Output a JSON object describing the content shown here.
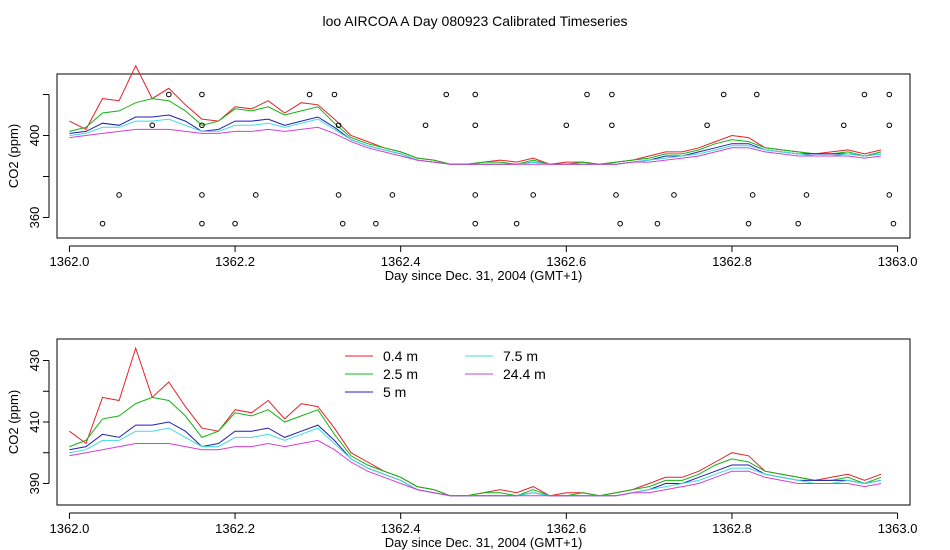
{
  "figure": {
    "title": "loo AIRCOA A  Day 080923  Calibrated Timeseries",
    "colors": {
      "0.4 m": "#e8202a",
      "2.5 m": "#13b413",
      "5 m": "#1f1fb8",
      "7.5 m": "#3fdcdc",
      "24.4 m": "#d43fd4"
    }
  },
  "chart_data": [
    {
      "type": "line",
      "title": "",
      "xlabel": "Day since Dec. 31, 2004 (GMT+1)",
      "ylabel": "CO2 (ppm)",
      "xlim": [
        1361.985,
        1363.015
      ],
      "ylim": [
        350,
        430
      ],
      "xticks": [
        1362.0,
        1362.2,
        1362.4,
        1362.6,
        1362.8,
        1363.0
      ],
      "xtick_labels": [
        "1362.0",
        "1362.2",
        "1362.4",
        "1362.6",
        "1362.8",
        "1363.0"
      ],
      "yticks": [
        360,
        380,
        400,
        420
      ],
      "ytick_labels": [
        "360",
        "",
        "400",
        ""
      ],
      "legend": null,
      "x": [
        1362.0,
        1362.02,
        1362.04,
        1362.06,
        1362.08,
        1362.1,
        1362.12,
        1362.14,
        1362.16,
        1362.18,
        1362.2,
        1362.22,
        1362.24,
        1362.26,
        1362.28,
        1362.3,
        1362.32,
        1362.34,
        1362.36,
        1362.38,
        1362.4,
        1362.42,
        1362.44,
        1362.46,
        1362.48,
        1362.5,
        1362.52,
        1362.54,
        1362.56,
        1362.58,
        1362.6,
        1362.62,
        1362.64,
        1362.66,
        1362.68,
        1362.7,
        1362.72,
        1362.74,
        1362.76,
        1362.78,
        1362.8,
        1362.82,
        1362.84,
        1362.86,
        1362.88,
        1362.9,
        1362.92,
        1362.94,
        1362.96,
        1362.98
      ],
      "series": [
        {
          "name": "0.4 m",
          "values": [
            407,
            403,
            418,
            417,
            434,
            418,
            423,
            415,
            408,
            407,
            414,
            413,
            417,
            411,
            416,
            415,
            408,
            400,
            397,
            394,
            392,
            389,
            388,
            386,
            386,
            387,
            388,
            387,
            389,
            386,
            387,
            387,
            386,
            387,
            388,
            390,
            392,
            392,
            394,
            397,
            400,
            399,
            394,
            393,
            392,
            391,
            392,
            393,
            391,
            393
          ]
        },
        {
          "name": "2.5 m",
          "values": [
            402,
            404,
            411,
            412,
            416,
            418,
            417,
            412,
            405,
            407,
            413,
            412,
            414,
            410,
            412,
            414,
            406,
            399,
            396,
            394,
            392,
            389,
            388,
            386,
            386,
            387,
            387,
            386,
            388,
            386,
            386,
            387,
            386,
            387,
            388,
            389,
            391,
            391,
            393,
            396,
            398,
            397,
            394,
            393,
            392,
            391,
            391,
            392,
            390,
            392
          ]
        },
        {
          "name": "5 m",
          "values": [
            401,
            402,
            406,
            405,
            409,
            409,
            410,
            407,
            402,
            403,
            407,
            407,
            408,
            405,
            407,
            409,
            404,
            398,
            395,
            393,
            391,
            388,
            387,
            386,
            386,
            386,
            386,
            386,
            387,
            386,
            386,
            386,
            386,
            386,
            387,
            388,
            390,
            390,
            392,
            394,
            396,
            396,
            393,
            392,
            391,
            391,
            391,
            391,
            390,
            391
          ]
        },
        {
          "name": "7.5 m",
          "values": [
            400,
            401,
            404,
            404,
            407,
            407,
            408,
            405,
            402,
            402,
            405,
            405,
            406,
            404,
            406,
            408,
            403,
            398,
            395,
            393,
            391,
            388,
            387,
            386,
            386,
            386,
            386,
            386,
            387,
            386,
            386,
            386,
            386,
            386,
            387,
            388,
            389,
            390,
            391,
            393,
            395,
            395,
            393,
            392,
            391,
            390,
            390,
            391,
            390,
            391
          ]
        },
        {
          "name": "24.4 m",
          "values": [
            399,
            400,
            401,
            402,
            403,
            403,
            403,
            402,
            401,
            401,
            402,
            402,
            403,
            402,
            403,
            404,
            401,
            397,
            394,
            392,
            390,
            388,
            387,
            386,
            386,
            386,
            386,
            386,
            386,
            386,
            386,
            386,
            386,
            386,
            387,
            387,
            388,
            389,
            390,
            392,
            394,
            394,
            392,
            391,
            390,
            390,
            390,
            390,
            389,
            390
          ]
        }
      ],
      "marker_points": {
        "x": [
          1362.04,
          1362.06,
          1362.1,
          1362.12,
          1362.16,
          1362.16,
          1362.16,
          1362.16,
          1362.2,
          1362.225,
          1362.29,
          1362.32,
          1362.325,
          1362.325,
          1362.33,
          1362.37,
          1362.39,
          1362.43,
          1362.455,
          1362.49,
          1362.49,
          1362.49,
          1362.49,
          1362.54,
          1362.56,
          1362.6,
          1362.625,
          1362.655,
          1362.655,
          1362.66,
          1362.665,
          1362.71,
          1362.73,
          1362.77,
          1362.79,
          1362.82,
          1362.825,
          1362.83,
          1362.88,
          1362.89,
          1362.935,
          1362.96,
          1362.99,
          1362.99,
          1362.99,
          1362.995
        ],
        "y": [
          357,
          371,
          405,
          420,
          405,
          357,
          371,
          420,
          357,
          371,
          420,
          420,
          405,
          371,
          357,
          357,
          371,
          405,
          420,
          405,
          420,
          371,
          357,
          357,
          371,
          405,
          420,
          420,
          405,
          371,
          357,
          357,
          371,
          405,
          420,
          357,
          371,
          420,
          357,
          371,
          405,
          420,
          420,
          405,
          371,
          357
        ]
      }
    },
    {
      "type": "line",
      "title": "",
      "xlabel": "Day since Dec. 31, 2004 (GMT+1)",
      "ylabel": "CO2 (ppm)",
      "xlim": [
        1361.985,
        1363.015
      ],
      "ylim": [
        383,
        437
      ],
      "xticks": [
        1362.0,
        1362.2,
        1362.4,
        1362.6,
        1362.8,
        1363.0
      ],
      "xtick_labels": [
        "1362.0",
        "1362.2",
        "1362.4",
        "1362.6",
        "1362.8",
        "1363.0"
      ],
      "yticks": [
        390,
        400,
        410,
        420,
        430
      ],
      "ytick_labels": [
        "390",
        "",
        "410",
        "",
        "430"
      ],
      "legend": "top-center",
      "x": [
        1362.0,
        1362.02,
        1362.04,
        1362.06,
        1362.08,
        1362.1,
        1362.12,
        1362.14,
        1362.16,
        1362.18,
        1362.2,
        1362.22,
        1362.24,
        1362.26,
        1362.28,
        1362.3,
        1362.32,
        1362.34,
        1362.36,
        1362.38,
        1362.4,
        1362.42,
        1362.44,
        1362.46,
        1362.48,
        1362.5,
        1362.52,
        1362.54,
        1362.56,
        1362.58,
        1362.6,
        1362.62,
        1362.64,
        1362.66,
        1362.68,
        1362.7,
        1362.72,
        1362.74,
        1362.76,
        1362.78,
        1362.8,
        1362.82,
        1362.84,
        1362.86,
        1362.88,
        1362.9,
        1362.92,
        1362.94,
        1362.96,
        1362.98
      ],
      "series": [
        {
          "name": "0.4 m",
          "values": [
            407,
            403,
            418,
            417,
            434,
            418,
            423,
            415,
            408,
            407,
            414,
            413,
            417,
            411,
            416,
            415,
            408,
            400,
            397,
            394,
            392,
            389,
            388,
            386,
            386,
            387,
            388,
            387,
            389,
            386,
            387,
            387,
            386,
            387,
            388,
            390,
            392,
            392,
            394,
            397,
            400,
            399,
            394,
            393,
            392,
            391,
            392,
            393,
            391,
            393
          ]
        },
        {
          "name": "2.5 m",
          "values": [
            402,
            404,
            411,
            412,
            416,
            418,
            417,
            412,
            405,
            407,
            413,
            412,
            414,
            410,
            412,
            414,
            406,
            399,
            396,
            394,
            392,
            389,
            388,
            386,
            386,
            387,
            387,
            386,
            388,
            386,
            386,
            387,
            386,
            387,
            388,
            389,
            391,
            391,
            393,
            396,
            398,
            397,
            394,
            393,
            392,
            391,
            391,
            392,
            390,
            392
          ]
        },
        {
          "name": "5 m",
          "values": [
            401,
            402,
            406,
            405,
            409,
            409,
            410,
            407,
            402,
            403,
            407,
            407,
            408,
            405,
            407,
            409,
            404,
            398,
            395,
            393,
            391,
            388,
            387,
            386,
            386,
            386,
            386,
            386,
            387,
            386,
            386,
            386,
            386,
            386,
            387,
            388,
            390,
            390,
            392,
            394,
            396,
            396,
            393,
            392,
            391,
            391,
            391,
            391,
            390,
            391
          ]
        },
        {
          "name": "7.5 m",
          "values": [
            400,
            401,
            404,
            404,
            407,
            407,
            408,
            405,
            402,
            402,
            405,
            405,
            406,
            404,
            406,
            408,
            403,
            398,
            395,
            393,
            391,
            388,
            387,
            386,
            386,
            386,
            386,
            386,
            387,
            386,
            386,
            386,
            386,
            386,
            387,
            388,
            389,
            390,
            391,
            393,
            395,
            395,
            393,
            392,
            391,
            390,
            390,
            391,
            390,
            391
          ]
        },
        {
          "name": "24.4 m",
          "values": [
            399,
            400,
            401,
            402,
            403,
            403,
            403,
            402,
            401,
            401,
            402,
            402,
            403,
            402,
            403,
            404,
            401,
            397,
            394,
            392,
            390,
            388,
            387,
            386,
            386,
            386,
            386,
            386,
            386,
            386,
            386,
            386,
            386,
            386,
            387,
            387,
            388,
            389,
            390,
            392,
            394,
            394,
            392,
            391,
            390,
            390,
            390,
            390,
            389,
            390
          ]
        }
      ]
    }
  ]
}
